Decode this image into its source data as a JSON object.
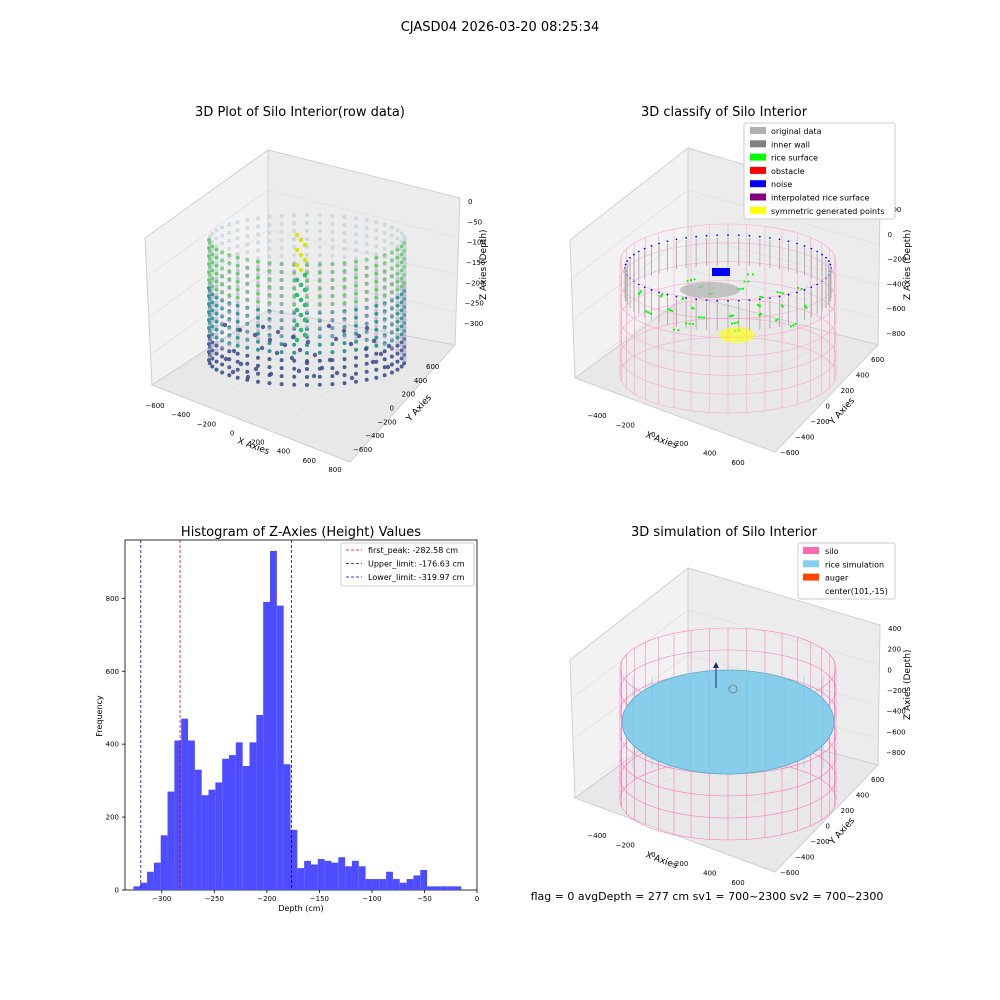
{
  "figure": {
    "suptitle": "CJASD04 2026-03-20 08:25:34",
    "footer": "flag = 0     avgDepth = 277 cm  sv1 = 700~2300  sv2 = 700~2300"
  },
  "colors": {
    "hist_bar": "#4d4dff",
    "peak_line": "#e00000",
    "limit_line": "#0000cc",
    "silo": "#ff69b4",
    "rice": "#87ceeb",
    "auger": "#ff4500",
    "original": "#b0b0b0",
    "inner_wall": "#808080",
    "rice_surface": "#00ff00",
    "obstacle": "#ff0000",
    "noise": "#0000ff",
    "interp": "#800080",
    "symmetric": "#ffff00"
  },
  "plot1": {
    "title": "3D Plot of Silo Interior(row data)",
    "xlabel": "X Axies",
    "ylabel": "Y Axies",
    "zlabel": "Z Axies (Depth)",
    "xticks": [
      "−600",
      "−400",
      "−200",
      "0",
      "200",
      "400",
      "600",
      "800"
    ],
    "yticks": [
      "600",
      "400",
      "200",
      "0",
      "−200",
      "−400",
      "−600"
    ],
    "zticks": [
      "0",
      "−50",
      "−100",
      "−150",
      "−200",
      "−250",
      "−300"
    ]
  },
  "plot2": {
    "title": "3D classify of Silo Interior",
    "xlabel": "X Axies",
    "ylabel": "Y Axies",
    "zlabel": "Z Axies (Depth)",
    "xticks": [
      "−400",
      "−200",
      "0",
      "200",
      "400",
      "600"
    ],
    "yticks": [
      "600",
      "400",
      "200",
      "0",
      "−200",
      "−400",
      "−600"
    ],
    "zticks": [
      "200",
      "0",
      "−200",
      "−400",
      "−600",
      "−800"
    ],
    "legend": [
      "original data",
      "inner wall",
      "rice surface",
      "obstacle",
      "noise",
      "interpolated rice surface",
      "symmetric generated points"
    ]
  },
  "plot4": {
    "title": "3D simulation of Silo Interior",
    "xlabel": "X Axies",
    "ylabel": "Y Axies",
    "zlabel": "Z Axies (Depth)",
    "xticks": [
      "−400",
      "−200",
      "0",
      "200",
      "400",
      "600"
    ],
    "yticks": [
      "600",
      "400",
      "200",
      "0",
      "−200",
      "−400",
      "−600"
    ],
    "zticks": [
      "400",
      "200",
      "0",
      "−200",
      "−400",
      "−600",
      "−800"
    ],
    "legend": [
      "silo",
      "rice simulation",
      "auger",
      "center(101,-15)"
    ]
  },
  "chart_data": {
    "type": "bar",
    "title": "Histogram of Z-Axies (Height) Values",
    "xlabel": "Depth (cm)",
    "ylabel": "Frequency",
    "xlim": [
      -335,
      0
    ],
    "ylim": [
      0,
      960
    ],
    "bin_width": 6.5,
    "bin_start": -327,
    "xticks": [
      -300,
      -250,
      -200,
      -150,
      -100,
      -50,
      0
    ],
    "xtick_labels": [
      "−300",
      "−250",
      "−200",
      "−150",
      "−100",
      "−50",
      "0"
    ],
    "yticks": [
      0,
      200,
      400,
      600,
      800
    ],
    "yticks_labels": [
      "0",
      "200",
      "400",
      "600",
      "800"
    ],
    "values": [
      10,
      20,
      50,
      75,
      150,
      270,
      410,
      470,
      410,
      330,
      260,
      275,
      295,
      360,
      370,
      405,
      340,
      405,
      480,
      790,
      930,
      780,
      345,
      165,
      60,
      80,
      70,
      85,
      80,
      75,
      90,
      65,
      80,
      65,
      30,
      30,
      30,
      50,
      30,
      20,
      30,
      40,
      55,
      10,
      10,
      10,
      10,
      10
    ],
    "lines": [
      {
        "name": "first_peak: -282.58 cm",
        "x": -282.58,
        "style": "peak"
      },
      {
        "name": "Upper_limit: -176.63 cm",
        "x": -176.63,
        "style": "limit"
      },
      {
        "name": "Lower_limit: -319.97 cm",
        "x": -319.97,
        "style": "limit"
      }
    ]
  }
}
